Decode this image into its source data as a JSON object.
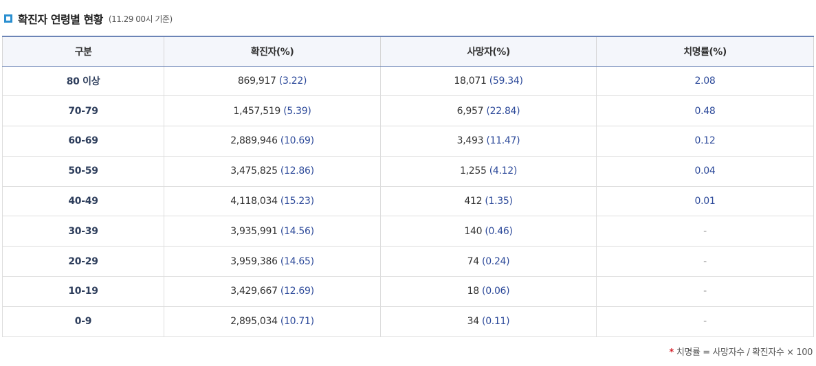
{
  "header": {
    "title": "확진자 연령별 현황",
    "timestamp": "(11.29 00시 기준)"
  },
  "table": {
    "columns": [
      "구분",
      "확진자(%)",
      "사망자(%)",
      "치명률(%)"
    ],
    "rows": [
      {
        "age": "80 이상",
        "confirmed": "869,917",
        "confirmed_pct": "(3.22)",
        "deaths": "18,071",
        "deaths_pct": "(59.34)",
        "fatality": "2.08"
      },
      {
        "age": "70-79",
        "confirmed": "1,457,519",
        "confirmed_pct": "(5.39)",
        "deaths": "6,957",
        "deaths_pct": "(22.84)",
        "fatality": "0.48"
      },
      {
        "age": "60-69",
        "confirmed": "2,889,946",
        "confirmed_pct": "(10.69)",
        "deaths": "3,493",
        "deaths_pct": "(11.47)",
        "fatality": "0.12"
      },
      {
        "age": "50-59",
        "confirmed": "3,475,825",
        "confirmed_pct": "(12.86)",
        "deaths": "1,255",
        "deaths_pct": "(4.12)",
        "fatality": "0.04"
      },
      {
        "age": "40-49",
        "confirmed": "4,118,034",
        "confirmed_pct": "(15.23)",
        "deaths": "412",
        "deaths_pct": "(1.35)",
        "fatality": "0.01"
      },
      {
        "age": "30-39",
        "confirmed": "3,935,991",
        "confirmed_pct": "(14.56)",
        "deaths": "140",
        "deaths_pct": "(0.46)",
        "fatality": "-"
      },
      {
        "age": "20-29",
        "confirmed": "3,959,386",
        "confirmed_pct": "(14.65)",
        "deaths": "74",
        "deaths_pct": "(0.24)",
        "fatality": "-"
      },
      {
        "age": "10-19",
        "confirmed": "3,429,667",
        "confirmed_pct": "(12.69)",
        "deaths": "18",
        "deaths_pct": "(0.06)",
        "fatality": "-"
      },
      {
        "age": "0-9",
        "confirmed": "2,895,034",
        "confirmed_pct": "(10.71)",
        "deaths": "34",
        "deaths_pct": "(0.11)",
        "fatality": "-"
      }
    ]
  },
  "footnote": {
    "mark": "*",
    "text": "치명률 = 사망자수 / 확진자수 × 100"
  },
  "colors": {
    "bullet": "#2a8fd0",
    "header_rule": "#6c84b6",
    "percent_text": "#2d4a9a",
    "footnote_mark": "#d4202a"
  },
  "icons": {
    "section_bullet": "square-bullet-icon"
  }
}
